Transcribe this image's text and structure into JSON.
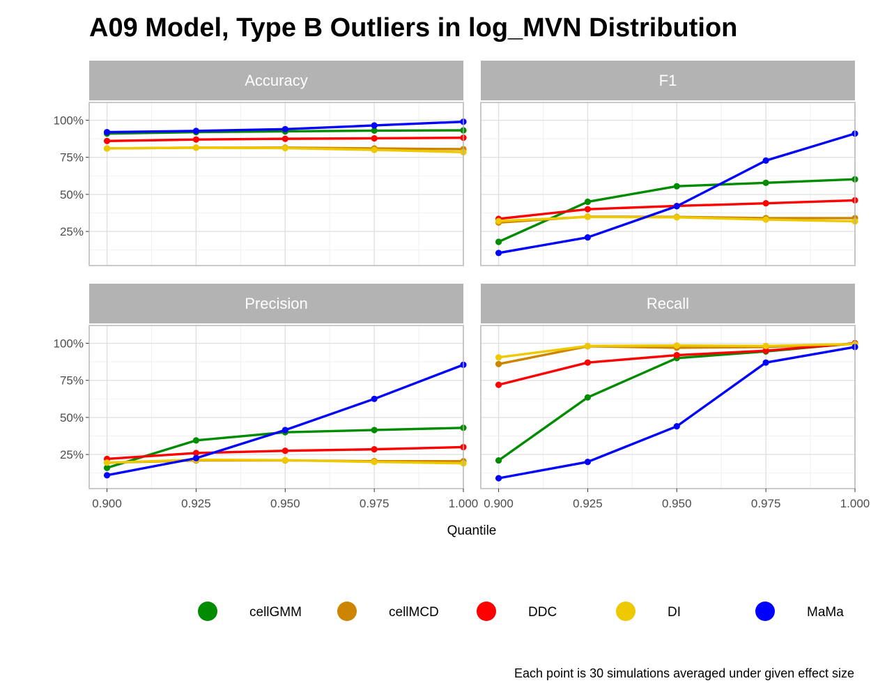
{
  "chart_data": {
    "type": "line",
    "title": "A09 Model, Type B Outliers in log_MVN Distribution",
    "xlabel": "Quantile",
    "ylabel": "",
    "caption": "Each point is 30 simulations averaged under given effect size",
    "x": [
      0.9,
      0.925,
      0.95,
      0.975,
      1.0
    ],
    "x_tick_labels": [
      "0.900",
      "0.925",
      "0.950",
      "0.975",
      "1.000"
    ],
    "xlim": [
      0.895,
      1.0
    ],
    "ylim": [
      0.02,
      1.12
    ],
    "y_ticks": [
      0.25,
      0.5,
      0.75,
      1.0
    ],
    "y_tick_labels": [
      "25%",
      "50%",
      "75%",
      "100%"
    ],
    "grid": true,
    "legend_position": "bottom",
    "legend": [
      {
        "name": "cellGMM",
        "color": "#008B00"
      },
      {
        "name": "cellMCD",
        "color": "#CD8500"
      },
      {
        "name": "DDC",
        "color": "#FF0000"
      },
      {
        "name": "DI",
        "color": "#EEC900"
      },
      {
        "name": "MaMa",
        "color": "#0000FF"
      }
    ],
    "panels": [
      {
        "label": "Accuracy",
        "series": [
          {
            "name": "cellGMM",
            "values": [
              0.91,
              0.92,
              0.925,
              0.93,
              0.932
            ]
          },
          {
            "name": "cellMCD",
            "values": [
              0.81,
              0.815,
              0.815,
              0.81,
              0.805
            ]
          },
          {
            "name": "DDC",
            "values": [
              0.86,
              0.87,
              0.875,
              0.878,
              0.882
            ]
          },
          {
            "name": "DI",
            "values": [
              0.81,
              0.815,
              0.812,
              0.8,
              0.785
            ]
          },
          {
            "name": "MaMa",
            "values": [
              0.92,
              0.928,
              0.94,
              0.965,
              0.99
            ]
          }
        ]
      },
      {
        "label": "F1",
        "series": [
          {
            "name": "cellGMM",
            "values": [
              0.18,
              0.45,
              0.555,
              0.578,
              0.602
            ]
          },
          {
            "name": "cellMCD",
            "values": [
              0.31,
              0.35,
              0.348,
              0.34,
              0.34
            ]
          },
          {
            "name": "DDC",
            "values": [
              0.335,
              0.4,
              0.422,
              0.44,
              0.46
            ]
          },
          {
            "name": "DI",
            "values": [
              0.32,
              0.348,
              0.345,
              0.33,
              0.318
            ]
          },
          {
            "name": "MaMa",
            "values": [
              0.105,
              0.21,
              0.42,
              0.728,
              0.91
            ]
          }
        ]
      },
      {
        "label": "Precision",
        "series": [
          {
            "name": "cellGMM",
            "values": [
              0.16,
              0.345,
              0.4,
              0.415,
              0.43
            ]
          },
          {
            "name": "cellMCD",
            "values": [
              0.195,
              0.21,
              0.21,
              0.205,
              0.205
            ]
          },
          {
            "name": "DDC",
            "values": [
              0.22,
              0.26,
              0.275,
              0.285,
              0.3
            ]
          },
          {
            "name": "DI",
            "values": [
              0.195,
              0.215,
              0.212,
              0.2,
              0.19
            ]
          },
          {
            "name": "MaMa",
            "values": [
              0.11,
              0.225,
              0.415,
              0.625,
              0.855
            ]
          }
        ]
      },
      {
        "label": "Recall",
        "series": [
          {
            "name": "cellGMM",
            "values": [
              0.21,
              0.635,
              0.9,
              0.945,
              1.0
            ]
          },
          {
            "name": "cellMCD",
            "values": [
              0.86,
              0.98,
              0.97,
              0.975,
              0.995
            ]
          },
          {
            "name": "DDC",
            "values": [
              0.72,
              0.87,
              0.92,
              0.95,
              1.0
            ]
          },
          {
            "name": "DI",
            "values": [
              0.905,
              0.982,
              0.985,
              0.982,
              0.995
            ]
          },
          {
            "name": "MaMa",
            "values": [
              0.09,
              0.2,
              0.44,
              0.87,
              0.975
            ]
          }
        ]
      }
    ]
  }
}
